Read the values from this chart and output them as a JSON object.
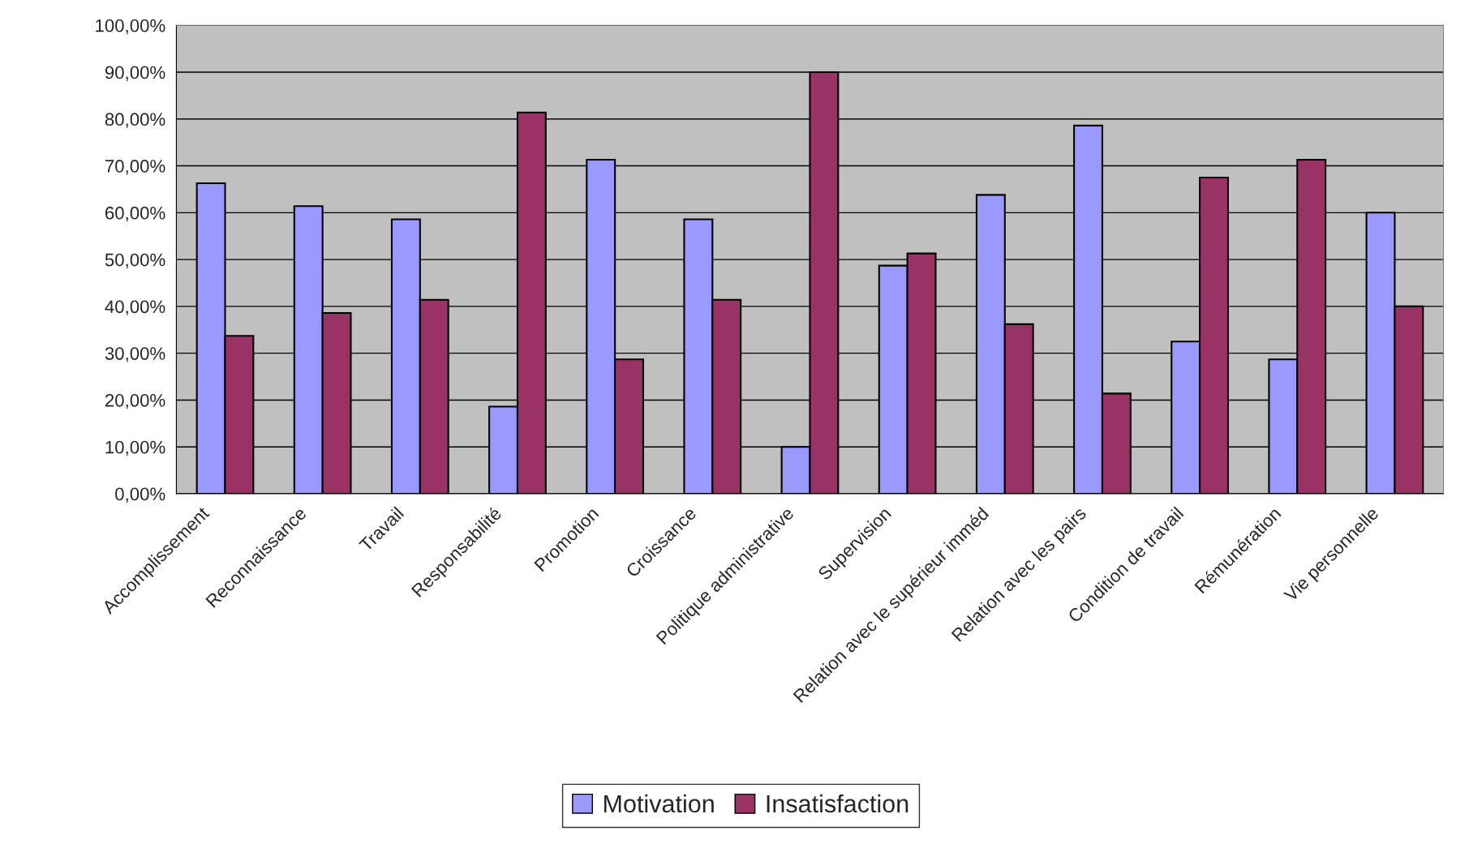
{
  "chart_data": {
    "type": "bar",
    "categories": [
      "Accomplissement",
      "Reconnaissance",
      "Travail",
      "Responsabilité",
      "Promotion",
      "Croissance",
      "Politique administrative",
      "Supervision",
      "Relation avec le supérieur imméd",
      "Relation avec les pairs",
      "Condition de travail",
      "Rémunération",
      "Vie personnelle"
    ],
    "series": [
      {
        "name": "Motivation",
        "color": "#9999ff",
        "values": [
          66.3,
          61.4,
          58.6,
          18.6,
          71.3,
          58.6,
          10,
          48.7,
          63.8,
          78.6,
          32.5,
          28.7,
          60
        ]
      },
      {
        "name": "Insatisfaction",
        "color": "#993366",
        "values": [
          33.7,
          38.6,
          41.4,
          81.4,
          28.7,
          41.4,
          90,
          51.3,
          36.2,
          21.4,
          67.5,
          71.3,
          40
        ]
      }
    ],
    "ylim": [
      0,
      100
    ],
    "yticks": [
      {
        "value": 0,
        "label": "0,00%"
      },
      {
        "value": 10,
        "label": "10,00%"
      },
      {
        "value": 20,
        "label": "20,00%"
      },
      {
        "value": 30,
        "label": "30,00%"
      },
      {
        "value": 40,
        "label": "40,00%"
      },
      {
        "value": 50,
        "label": "50,00%"
      },
      {
        "value": 60,
        "label": "60,00%"
      },
      {
        "value": 70,
        "label": "70,00%"
      },
      {
        "value": 80,
        "label": "80,00%"
      },
      {
        "value": 90,
        "label": "90,00%"
      },
      {
        "value": 100,
        "label": "100,00%"
      }
    ],
    "grid": "y",
    "legend": "bottom"
  }
}
